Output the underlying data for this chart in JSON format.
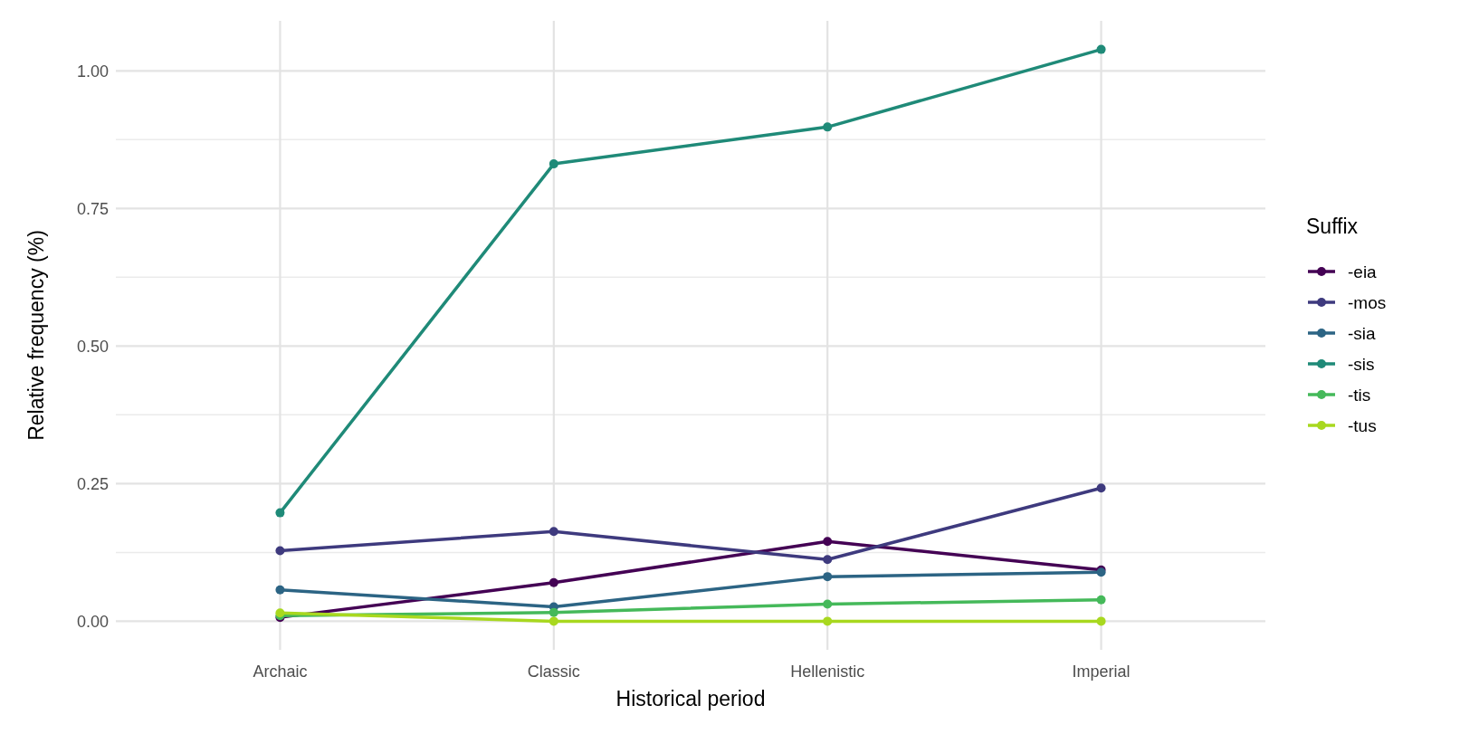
{
  "chart_data": {
    "type": "line",
    "xlabel": "Historical period",
    "ylabel": "Relative frequency (%)",
    "legend_title": "Suffix",
    "categories": [
      "Archaic",
      "Classic",
      "Hellenistic",
      "Imperial"
    ],
    "series": [
      {
        "name": "-eia",
        "color": "#440154",
        "values": [
          0.007,
          0.07,
          0.145,
          0.093
        ]
      },
      {
        "name": "-mos",
        "color": "#3e3a7e",
        "values": [
          0.128,
          0.163,
          0.112,
          0.242
        ]
      },
      {
        "name": "-sia",
        "color": "#2c6484",
        "values": [
          0.057,
          0.026,
          0.081,
          0.089
        ]
      },
      {
        "name": "-sis",
        "color": "#1f8a78",
        "values": [
          0.197,
          0.831,
          0.898,
          1.039
        ]
      },
      {
        "name": "-tis",
        "color": "#45b95a",
        "values": [
          0.01,
          0.016,
          0.031,
          0.039
        ]
      },
      {
        "name": "-tus",
        "color": "#a8d81f",
        "values": [
          0.015,
          0,
          0,
          0
        ]
      }
    ],
    "ylim": [
      -0.052,
      1.091
    ],
    "yticks": [
      {
        "value": 0,
        "label": "0.00"
      },
      {
        "value": 0.25,
        "label": "0.25"
      },
      {
        "value": 0.5,
        "label": "0.50"
      },
      {
        "value": 0.75,
        "label": "0.75"
      },
      {
        "value": 1,
        "label": "1.00"
      }
    ],
    "grid": true,
    "legend": "right",
    "marker": "circle",
    "line_style": "solid"
  }
}
